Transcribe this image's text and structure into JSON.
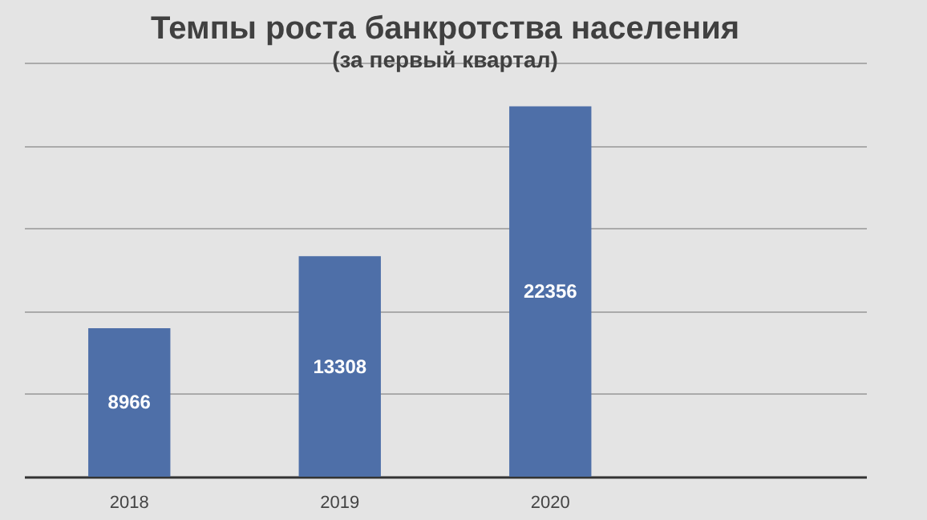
{
  "chart_data": {
    "type": "bar",
    "title": "Темпы роста банкротства населения",
    "subtitle": "(за первый квартал)",
    "categories": [
      "2018",
      "2019",
      "2020",
      null
    ],
    "values": [
      8966,
      13308,
      22356,
      null
    ],
    "color": "#4e6fa8",
    "ylim": [
      0,
      25000
    ],
    "yticks": [
      {
        "value": 0,
        "label": null
      },
      {
        "value": 5000,
        "label": null
      },
      {
        "value": 10000,
        "label": null
      },
      {
        "value": 15000,
        "label": null
      },
      {
        "value": 20000,
        "label": null
      },
      {
        "value": 25000,
        "label": null
      }
    ],
    "tick_labels": "x",
    "grid": "y",
    "data_labels": true
  }
}
